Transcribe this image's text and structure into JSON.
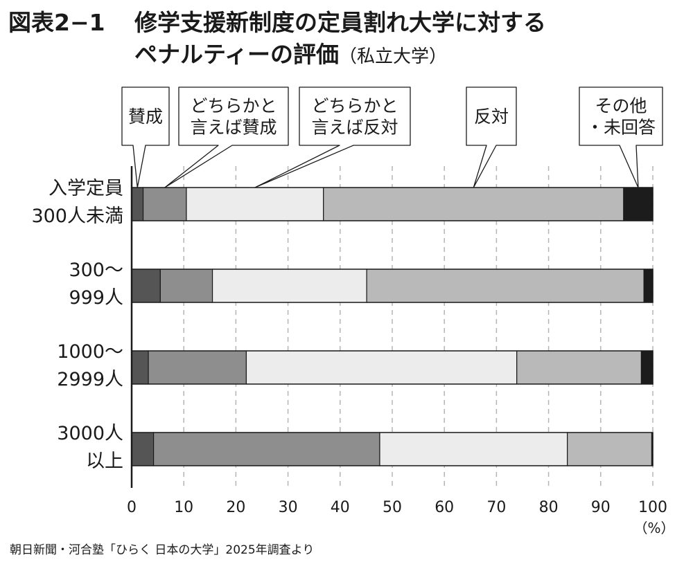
{
  "figure": {
    "number": "図表2−1",
    "title_line1": "修学支援新制度の定員割れ大学に対する",
    "title_line2": "ペナルティーの評価",
    "title_sub": "（私立大学）"
  },
  "source": "朝日新聞・河合塾「ひらく 日本の大学」2025年調査より",
  "chart_data": {
    "type": "bar",
    "orientation": "horizontal",
    "stacked": true,
    "categories": [
      [
        "入学定員",
        "300人未満"
      ],
      [
        "300〜",
        "999人"
      ],
      [
        "1000〜",
        "2999人"
      ],
      [
        "3000人",
        "以上"
      ]
    ],
    "series": [
      {
        "name": "賛成",
        "label_lines": [
          "賛成"
        ],
        "color": "#555555",
        "values": [
          2.2,
          5.5,
          3.2,
          4.2
        ]
      },
      {
        "name": "どちらかと言えば賛成",
        "label_lines": [
          "どちらかと",
          "言えば賛成"
        ],
        "color": "#8e8e8e",
        "values": [
          8.3,
          10.0,
          18.8,
          43.4
        ]
      },
      {
        "name": "どちらかと言えば反対",
        "label_lines": [
          "どちらかと",
          "言えば反対"
        ],
        "color": "#ececec",
        "values": [
          26.3,
          29.6,
          51.9,
          36.0
        ]
      },
      {
        "name": "反対",
        "label_lines": [
          "反対"
        ],
        "color": "#b9b9b9",
        "values": [
          57.6,
          53.2,
          23.9,
          16.2
        ]
      },
      {
        "name": "その他・未回答",
        "label_lines": [
          "その他",
          "・未回答"
        ],
        "color": "#1c1c1c",
        "values": [
          5.6,
          1.7,
          2.2,
          0.2
        ]
      }
    ],
    "xlim": [
      0,
      100
    ],
    "xticks": [
      0,
      10,
      20,
      30,
      40,
      50,
      60,
      70,
      80,
      90,
      100
    ],
    "x_unit": "（%）",
    "grid": "vertical dashed",
    "legend": "callout boxes above the top bar"
  }
}
